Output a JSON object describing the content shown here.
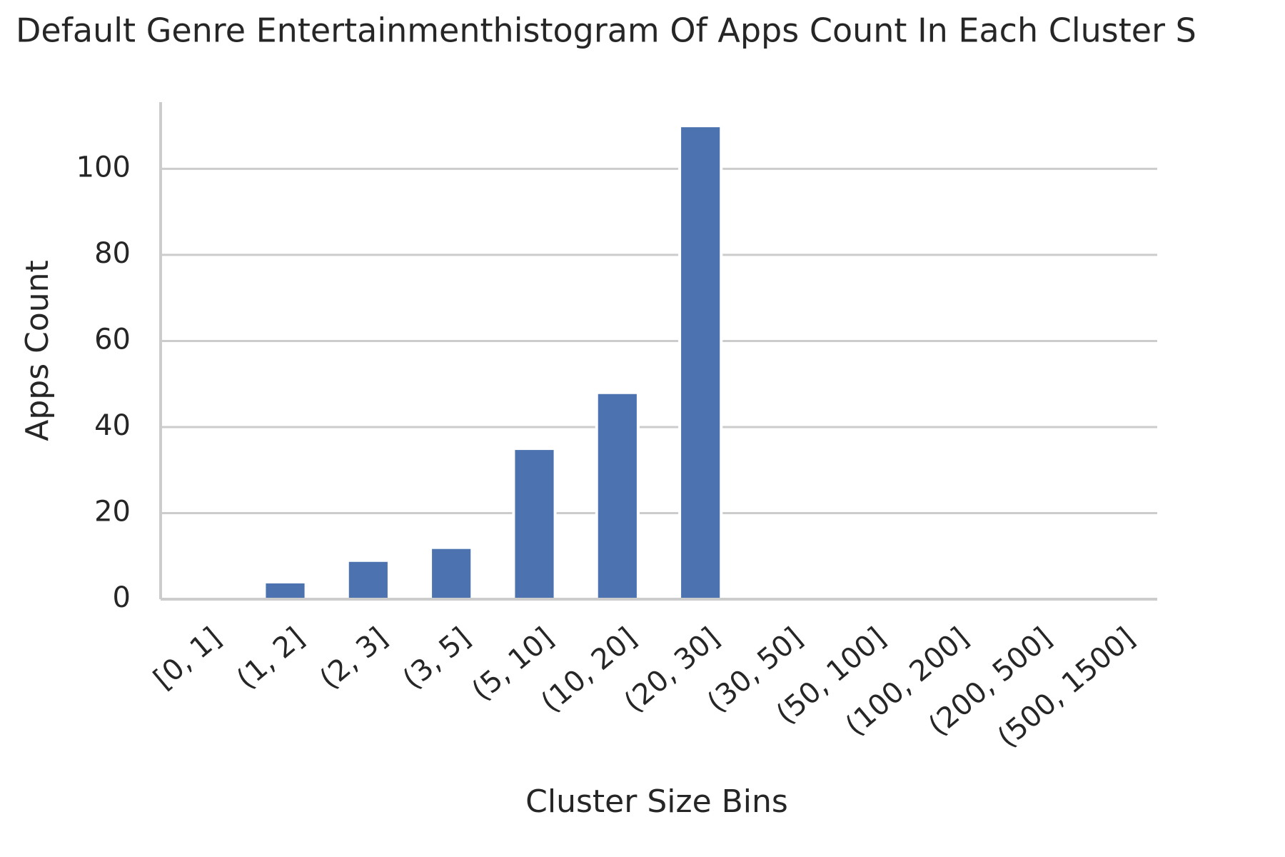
{
  "chart_data": {
    "type": "bar",
    "title": "Default Genre Entertainmenthistogram Of Apps Count In Each Cluster S",
    "x_label": "Cluster Size Bins",
    "y_label": "Apps Count",
    "categories": [
      "[0, 1]",
      "(1, 2]",
      "(2, 3]",
      "(3, 5]",
      "(5, 10]",
      "(10, 20]",
      "(20, 30]",
      "(30, 50]",
      "(50, 100]",
      "(100, 200]",
      "(200, 500]",
      "(500, 1500]"
    ],
    "values": [
      0,
      4,
      9,
      12,
      35,
      48,
      110,
      0,
      0,
      0,
      0,
      0
    ],
    "color": "#4c72b0",
    "ylim": [
      0,
      115.5
    ],
    "yticks": [
      0,
      20,
      40,
      60,
      80,
      100
    ],
    "grid": true
  }
}
